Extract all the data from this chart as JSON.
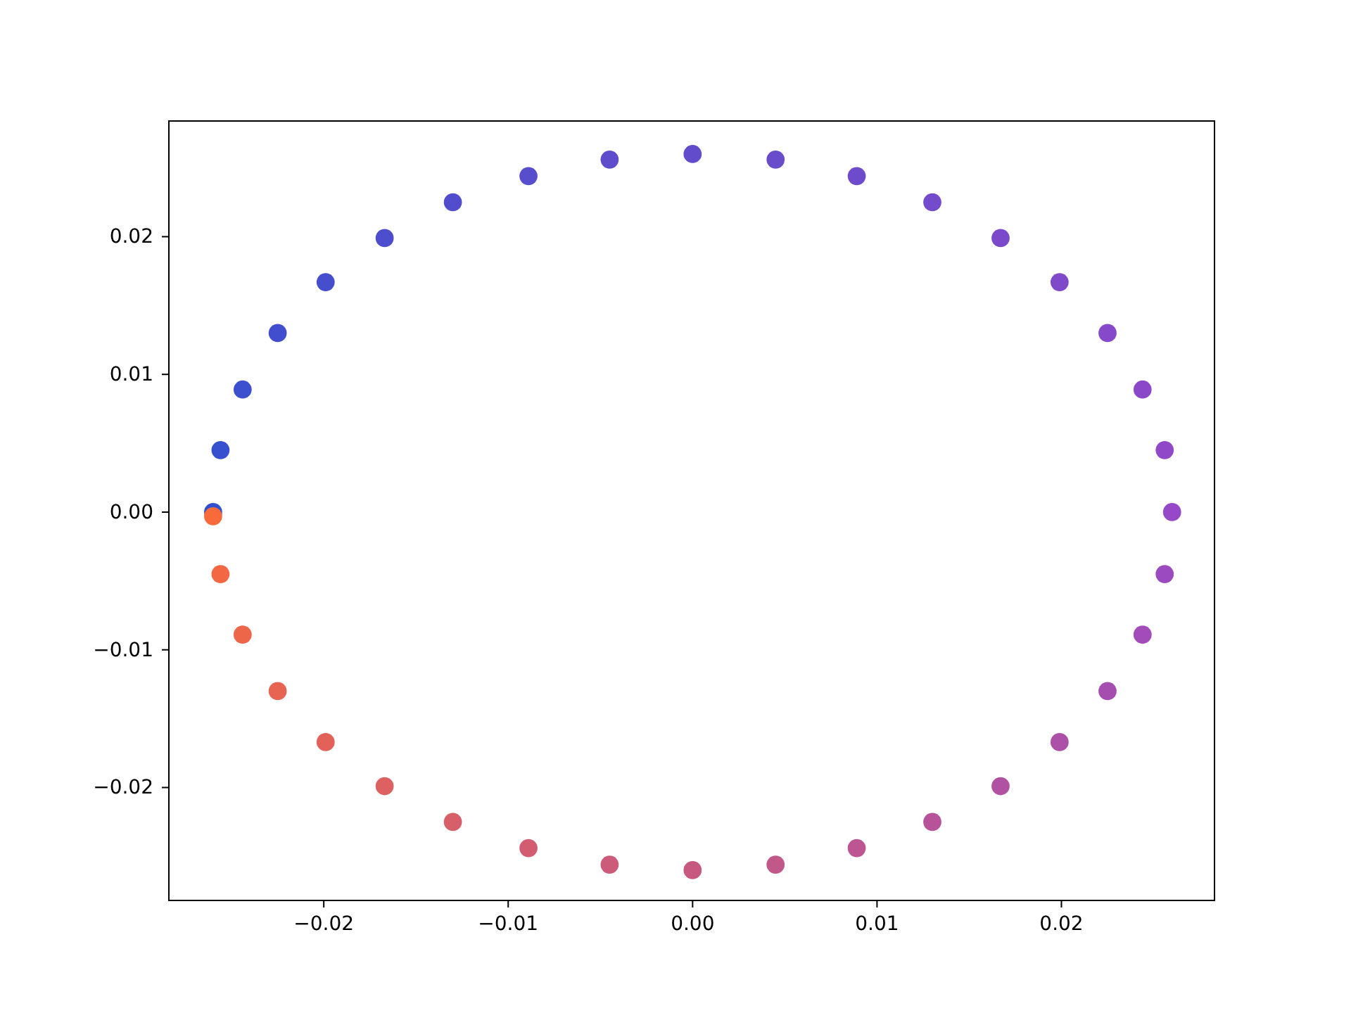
{
  "chart_data": {
    "type": "scatter",
    "marker": "circle",
    "grid": false,
    "xlim": [
      -0.0284,
      0.0283
    ],
    "ylim": [
      -0.0282,
      0.0284
    ],
    "xticks": [
      {
        "value": -0.02,
        "label": "−0.02"
      },
      {
        "value": -0.01,
        "label": "−0.01"
      },
      {
        "value": 0,
        "label": "0.00"
      },
      {
        "value": 0.01,
        "label": "0.01"
      },
      {
        "value": 0.02,
        "label": "0.02"
      }
    ],
    "yticks": [
      {
        "value": -0.02,
        "label": "−0.02"
      },
      {
        "value": -0.01,
        "label": "−0.01"
      },
      {
        "value": 0,
        "label": "0.00"
      },
      {
        "value": 0.01,
        "label": "0.01"
      },
      {
        "value": 0.02,
        "label": "0.02"
      }
    ],
    "series": [
      {
        "x": [
          -0.026,
          -0.0256,
          -0.0244,
          -0.0225,
          -0.0199,
          -0.0167,
          -0.013,
          -0.0089,
          -0.0045,
          0,
          0.0045,
          0.0089,
          0.013,
          0.0167,
          0.0199,
          0.0225,
          0.0244,
          0.0256,
          0.026,
          0.0256,
          0.0244,
          0.0225,
          0.0199,
          0.0167,
          0.013,
          0.0089,
          0.0045,
          0,
          -0.0045,
          -0.0089,
          -0.013,
          -0.0167,
          -0.0199,
          -0.0225,
          -0.0244,
          -0.0256,
          -0.026
        ],
        "values": [
          0,
          0.0045,
          0.0089,
          0.013,
          0.0167,
          0.0199,
          0.0225,
          0.0244,
          0.0256,
          0.026,
          0.0256,
          0.0244,
          0.0225,
          0.0199,
          0.0167,
          0.013,
          0.0089,
          0.0045,
          0,
          -0.0045,
          -0.0089,
          -0.013,
          -0.0167,
          -0.0199,
          -0.0225,
          -0.0244,
          -0.0256,
          -0.026,
          -0.0256,
          -0.0244,
          -0.0225,
          -0.0199,
          -0.0167,
          -0.013,
          -0.0089,
          -0.0045,
          -0.0003
        ],
        "colors": [
          "#3050d0",
          "#3650d0",
          "#3b4fcf",
          "#414fcf",
          "#474ece",
          "#4c4ece",
          "#524dcd",
          "#584dcd",
          "#5d4ccc",
          "#634ccc",
          "#694ccc",
          "#6e4bcb",
          "#744bcb",
          "#7a4aca",
          "#7f4aca",
          "#8549c9",
          "#8b49c9",
          "#9048c8",
          "#9648c8",
          "#9b4ac0",
          "#a14cb8",
          "#a64eb0",
          "#ac50a8",
          "#b151a1",
          "#b75399",
          "#bc5591",
          "#c25789",
          "#c75981",
          "#cc5b79",
          "#d25d71",
          "#d75f69",
          "#dd6161",
          "#e2625a",
          "#e86452",
          "#ed664a",
          "#f36842",
          "#f86a3a"
        ]
      }
    ]
  }
}
